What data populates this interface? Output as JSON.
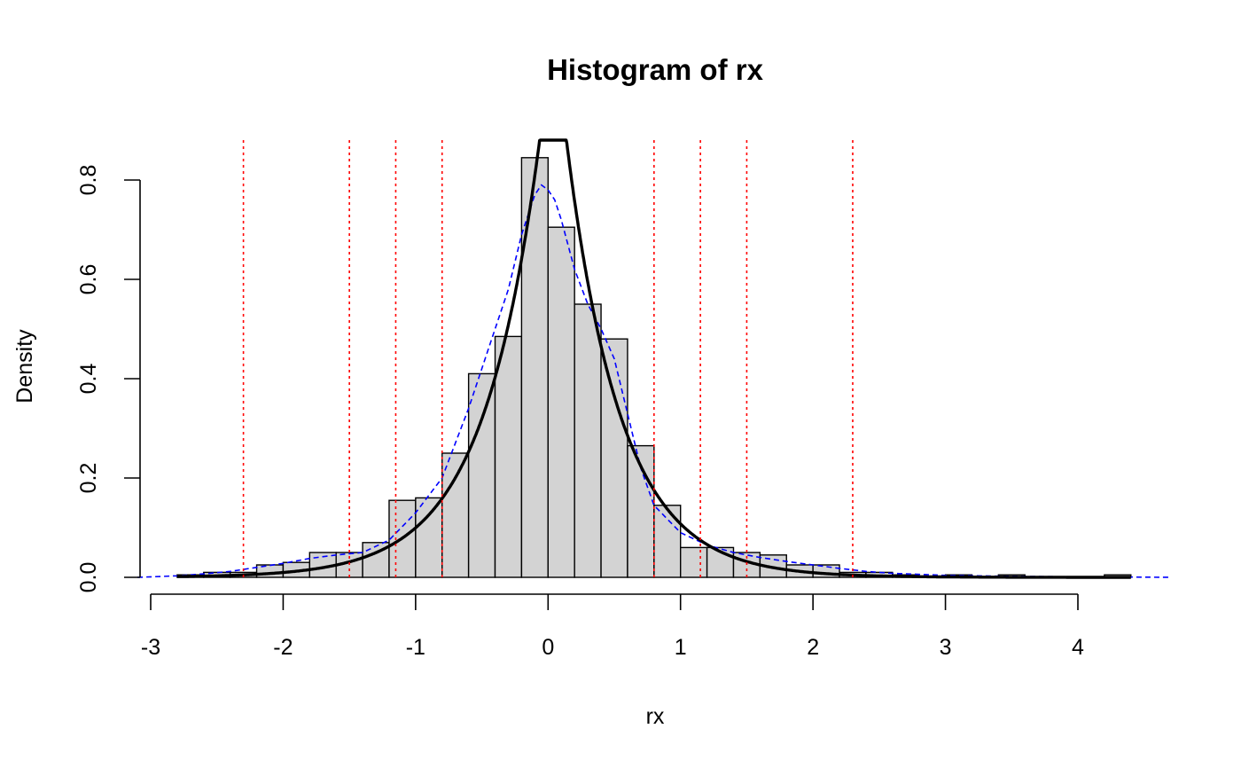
{
  "chart_data": {
    "type": "bar",
    "title": "Histogram of rx",
    "xlabel": "rx",
    "ylabel": "Density",
    "xlim": [
      -3,
      4.65
    ],
    "ylim": [
      0,
      0.8
    ],
    "x_ticks": [
      -3,
      -2,
      -1,
      0,
      1,
      2,
      3,
      4
    ],
    "x_tick_labels": [
      "-3",
      "-2",
      "-1",
      "0",
      "1",
      "2",
      "3",
      "4"
    ],
    "y_ticks": [
      0,
      0.2,
      0.4,
      0.6,
      0.8
    ],
    "y_tick_labels": [
      "0.0",
      "0.2",
      "0.4",
      "0.6",
      "0.8"
    ],
    "grid": false,
    "bin_width": 0.2,
    "bins": [
      {
        "x0": -2.8,
        "x1": -2.6,
        "density": 0.005
      },
      {
        "x0": -2.6,
        "x1": -2.4,
        "density": 0.01
      },
      {
        "x0": -2.4,
        "x1": -2.2,
        "density": 0.01
      },
      {
        "x0": -2.2,
        "x1": -2.0,
        "density": 0.025
      },
      {
        "x0": -2.0,
        "x1": -1.8,
        "density": 0.03
      },
      {
        "x0": -1.8,
        "x1": -1.6,
        "density": 0.05
      },
      {
        "x0": -1.6,
        "x1": -1.4,
        "density": 0.05
      },
      {
        "x0": -1.4,
        "x1": -1.2,
        "density": 0.07
      },
      {
        "x0": -1.2,
        "x1": -1.0,
        "density": 0.155
      },
      {
        "x0": -1.0,
        "x1": -0.8,
        "density": 0.16
      },
      {
        "x0": -0.8,
        "x1": -0.6,
        "density": 0.25
      },
      {
        "x0": -0.6,
        "x1": -0.4,
        "density": 0.41
      },
      {
        "x0": -0.4,
        "x1": -0.2,
        "density": 0.485
      },
      {
        "x0": -0.2,
        "x1": 0.0,
        "density": 0.845
      },
      {
        "x0": 0.0,
        "x1": 0.2,
        "density": 0.705
      },
      {
        "x0": 0.2,
        "x1": 0.4,
        "density": 0.55
      },
      {
        "x0": 0.4,
        "x1": 0.6,
        "density": 0.48
      },
      {
        "x0": 0.6,
        "x1": 0.8,
        "density": 0.265
      },
      {
        "x0": 0.8,
        "x1": 1.0,
        "density": 0.145
      },
      {
        "x0": 1.0,
        "x1": 1.2,
        "density": 0.06
      },
      {
        "x0": 1.2,
        "x1": 1.4,
        "density": 0.06
      },
      {
        "x0": 1.4,
        "x1": 1.6,
        "density": 0.05
      },
      {
        "x0": 1.6,
        "x1": 1.8,
        "density": 0.045
      },
      {
        "x0": 1.8,
        "x1": 2.0,
        "density": 0.025
      },
      {
        "x0": 2.0,
        "x1": 2.2,
        "density": 0.025
      },
      {
        "x0": 2.2,
        "x1": 2.4,
        "density": 0.01
      },
      {
        "x0": 2.4,
        "x1": 2.6,
        "density": 0.01
      },
      {
        "x0": 2.6,
        "x1": 2.8,
        "density": 0.005
      },
      {
        "x0": 2.8,
        "x1": 3.0,
        "density": 0.0
      },
      {
        "x0": 3.0,
        "x1": 3.2,
        "density": 0.005
      },
      {
        "x0": 3.2,
        "x1": 3.4,
        "density": 0.0
      },
      {
        "x0": 3.4,
        "x1": 3.6,
        "density": 0.005
      },
      {
        "x0": 3.6,
        "x1": 3.8,
        "density": 0.0
      },
      {
        "x0": 3.8,
        "x1": 4.0,
        "density": 0.0
      },
      {
        "x0": 4.0,
        "x1": 4.2,
        "density": 0.0
      },
      {
        "x0": 4.2,
        "x1": 4.4,
        "density": 0.005
      }
    ],
    "vertical_lines": [
      -2.3,
      -1.5,
      -1.15,
      -0.8,
      0.8,
      1.15,
      1.5,
      2.3
    ],
    "solid_curve": {
      "type": "asymmetric-laplace",
      "mode": 0.04,
      "peak_density": 1.12,
      "left_scale": 0.43,
      "right_scale": 0.41,
      "x_range": [
        -2.8,
        4.4
      ]
    },
    "dashed_curve": {
      "x": [
        -3.1,
        -2.8,
        -2.6,
        -2.4,
        -2.2,
        -2.0,
        -1.8,
        -1.6,
        -1.4,
        -1.2,
        -1.0,
        -0.8,
        -0.6,
        -0.45,
        -0.3,
        -0.2,
        -0.1,
        -0.05,
        0.0,
        0.05,
        0.1,
        0.2,
        0.3,
        0.4,
        0.5,
        0.6,
        0.7,
        0.8,
        1.0,
        1.2,
        1.4,
        1.6,
        1.8,
        2.0,
        2.2,
        2.4,
        2.6,
        3.0,
        3.5,
        4.0,
        4.4,
        4.7
      ],
      "y": [
        0.0,
        0.003,
        0.007,
        0.012,
        0.02,
        0.028,
        0.038,
        0.045,
        0.05,
        0.075,
        0.13,
        0.2,
        0.34,
        0.46,
        0.58,
        0.69,
        0.77,
        0.79,
        0.78,
        0.76,
        0.72,
        0.62,
        0.55,
        0.5,
        0.44,
        0.33,
        0.22,
        0.145,
        0.09,
        0.065,
        0.05,
        0.04,
        0.032,
        0.025,
        0.018,
        0.012,
        0.008,
        0.004,
        0.002,
        0.001,
        0.0005,
        0.0
      ]
    },
    "colors": {
      "bar_fill": "#d3d3d3",
      "bar_stroke": "#000000",
      "solid_curve": "#000000",
      "dashed_curve": "#0000ff",
      "vertical_lines": "#ff0000",
      "axis": "#000000"
    }
  }
}
